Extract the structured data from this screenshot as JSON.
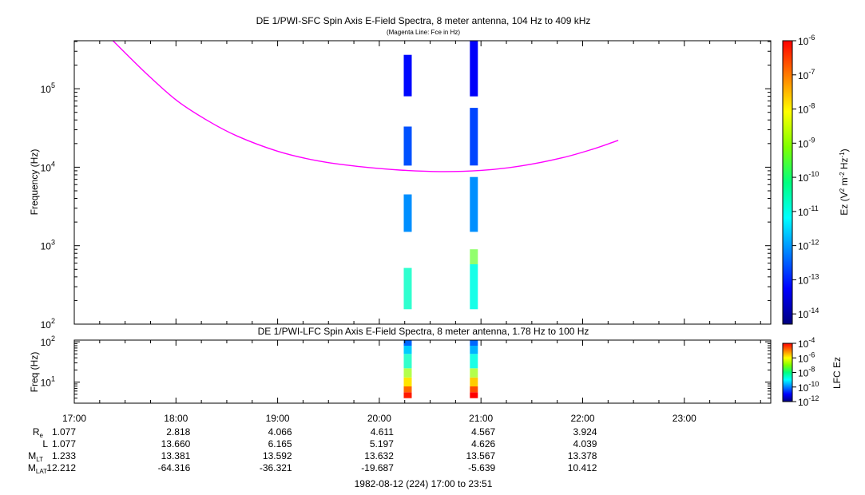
{
  "chart_data": [
    {
      "type": "heatmap",
      "title": "DE 1/PWI-SFC  Spin Axis E-Field Spectra, 8 meter antenna, 104 Hz to 409 kHz",
      "subtitle": "(Magenta Line: Fce in Hz)",
      "ylabel": "Frequency (Hz)",
      "yscale": "log",
      "ylim": [
        100,
        409000
      ],
      "yticks": [
        {
          "value": 100,
          "base": "10",
          "exp": "2"
        },
        {
          "value": 1000,
          "base": "10",
          "exp": "3"
        },
        {
          "value": 10000,
          "base": "10",
          "exp": "4"
        },
        {
          "value": 100000,
          "base": "10",
          "exp": "5"
        }
      ],
      "xlim": [
        17.0,
        23.85
      ],
      "colorbar": {
        "label_main": "Ez (V",
        "label_sup1": "2",
        "label_mid": " m",
        "label_sup2": "-2",
        "label_mid2": " Hz",
        "label_sup3": "-1",
        "label_end": ")",
        "scale": "log",
        "range": [
          -14.3,
          -6
        ],
        "ticks": [
          {
            "exp": -6,
            "base": "10",
            "sup": "-6"
          },
          {
            "exp": -7,
            "base": "10",
            "sup": "-7"
          },
          {
            "exp": -8,
            "base": "10",
            "sup": "-8"
          },
          {
            "exp": -9,
            "base": "10",
            "sup": "-9"
          },
          {
            "exp": -10,
            "base": "10",
            "sup": "-10"
          },
          {
            "exp": -11,
            "base": "10",
            "sup": "-11"
          },
          {
            "exp": -12,
            "base": "10",
            "sup": "-12"
          },
          {
            "exp": -13,
            "base": "10",
            "sup": "-13"
          },
          {
            "exp": -14,
            "base": "10",
            "sup": "-14"
          }
        ]
      },
      "blocks": [
        {
          "t": 20.28,
          "f_low": 80000,
          "f_high": 270000,
          "log_ez": -13.2
        },
        {
          "t": 20.28,
          "f_low": 10500,
          "f_high": 33000,
          "log_ez": -12.6
        },
        {
          "t": 20.28,
          "f_low": 1500,
          "f_high": 4500,
          "log_ez": -12.1
        },
        {
          "t": 20.28,
          "f_low": 155,
          "f_high": 520,
          "log_ez": -10.8
        },
        {
          "t": 20.93,
          "f_low": 80000,
          "f_high": 409000,
          "log_ez": -13.3
        },
        {
          "t": 20.93,
          "f_low": 10500,
          "f_high": 57000,
          "log_ez": -12.7
        },
        {
          "t": 20.93,
          "f_low": 1500,
          "f_high": 7500,
          "log_ez": -12.1
        },
        {
          "t": 20.93,
          "f_low": 155,
          "f_high": 580,
          "log_ez": -11.0
        },
        {
          "t": 20.93,
          "f_low": 580,
          "f_high": 900,
          "log_ez": -10.0
        }
      ],
      "fce_line": {
        "name": "Fce",
        "color": "#ff00ff",
        "t": [
          17.38,
          17.7,
          18.0,
          18.3,
          18.6,
          19.0,
          19.4,
          19.8,
          20.2,
          20.6,
          21.0,
          21.4,
          21.8,
          22.1,
          22.35
        ],
        "f": [
          409000,
          160000,
          72000,
          40000,
          25000,
          16000,
          12000,
          10200,
          9200,
          8800,
          9100,
          10400,
          13200,
          17000,
          22000
        ]
      }
    },
    {
      "type": "heatmap",
      "title": "DE 1/PWI-LFC  Spin Axis E-Field Spectra, 8 meter antenna, 1.78 Hz to 100 Hz",
      "ylabel": "Freq (Hz)",
      "yscale": "log",
      "ylim": [
        3,
        110
      ],
      "yticks": [
        {
          "value": 10,
          "base": "10",
          "exp": "1"
        },
        {
          "value": 100,
          "base": "10",
          "exp": "2"
        }
      ],
      "colorbar": {
        "label": "LFC Ez",
        "scale": "log",
        "range": [
          -12,
          -4
        ],
        "ticks": [
          {
            "exp": -4,
            "base": "10",
            "sup": "-4"
          },
          {
            "exp": -6,
            "base": "10",
            "sup": "-6"
          },
          {
            "exp": -8,
            "base": "10",
            "sup": "-8"
          },
          {
            "exp": -10,
            "base": "10",
            "sup": "-10"
          },
          {
            "exp": -12,
            "base": "10",
            "sup": "-12"
          }
        ]
      },
      "blocks": [
        {
          "t": 20.28,
          "f_low": 4.0,
          "f_high": 5.6,
          "log_ez": -5.2
        },
        {
          "t": 20.28,
          "f_low": 5.6,
          "f_high": 7.8,
          "log_ez": -5.8
        },
        {
          "t": 20.28,
          "f_low": 7.8,
          "f_high": 13,
          "log_ez": -6.8
        },
        {
          "t": 20.28,
          "f_low": 13,
          "f_high": 22,
          "log_ez": -7.6
        },
        {
          "t": 20.28,
          "f_low": 22,
          "f_high": 50,
          "log_ez": -8.6
        },
        {
          "t": 20.28,
          "f_low": 50,
          "f_high": 80,
          "log_ez": -9.4
        },
        {
          "t": 20.28,
          "f_low": 80,
          "f_high": 110,
          "log_ez": -10.2
        },
        {
          "t": 20.93,
          "f_low": 4.0,
          "f_high": 5.6,
          "log_ez": -5.0
        },
        {
          "t": 20.93,
          "f_low": 5.6,
          "f_high": 7.8,
          "log_ez": -5.6
        },
        {
          "t": 20.93,
          "f_low": 7.8,
          "f_high": 13,
          "log_ez": -6.6
        },
        {
          "t": 20.93,
          "f_low": 13,
          "f_high": 22,
          "log_ez": -7.6
        },
        {
          "t": 20.93,
          "f_low": 22,
          "f_high": 50,
          "log_ez": -8.8
        },
        {
          "t": 20.93,
          "f_low": 50,
          "f_high": 80,
          "log_ez": -9.6
        },
        {
          "t": 20.93,
          "f_low": 80,
          "f_high": 110,
          "log_ez": -10.2
        }
      ]
    }
  ],
  "time_axis": {
    "ticks": [
      {
        "t": 17,
        "label": "17:00"
      },
      {
        "t": 18,
        "label": "18:00"
      },
      {
        "t": 19,
        "label": "19:00"
      },
      {
        "t": 20,
        "label": "20:00"
      },
      {
        "t": 21,
        "label": "21:00"
      },
      {
        "t": 22,
        "label": "22:00"
      },
      {
        "t": 23,
        "label": "23:00"
      }
    ],
    "rows": [
      {
        "label": "R",
        "sub": "e",
        "values": [
          "1.077",
          "2.818",
          "4.066",
          "4.611",
          "4.567",
          "3.924"
        ]
      },
      {
        "label": "L",
        "sub": "",
        "values": [
          "1.077",
          "13.660",
          "6.165",
          "5.197",
          "4.626",
          "4.039"
        ]
      },
      {
        "label": "M",
        "sub": "LT",
        "values": [
          "1.233",
          "13.381",
          "13.592",
          "13.632",
          "13.567",
          "13.378"
        ]
      },
      {
        "label": "M",
        "sub": "LAT",
        "values": [
          "12.212",
          "-64.316",
          "-36.321",
          "-19.687",
          "-5.639",
          "10.412"
        ]
      }
    ],
    "footer": "1982-08-12 (224) 17:00 to 23:51"
  }
}
